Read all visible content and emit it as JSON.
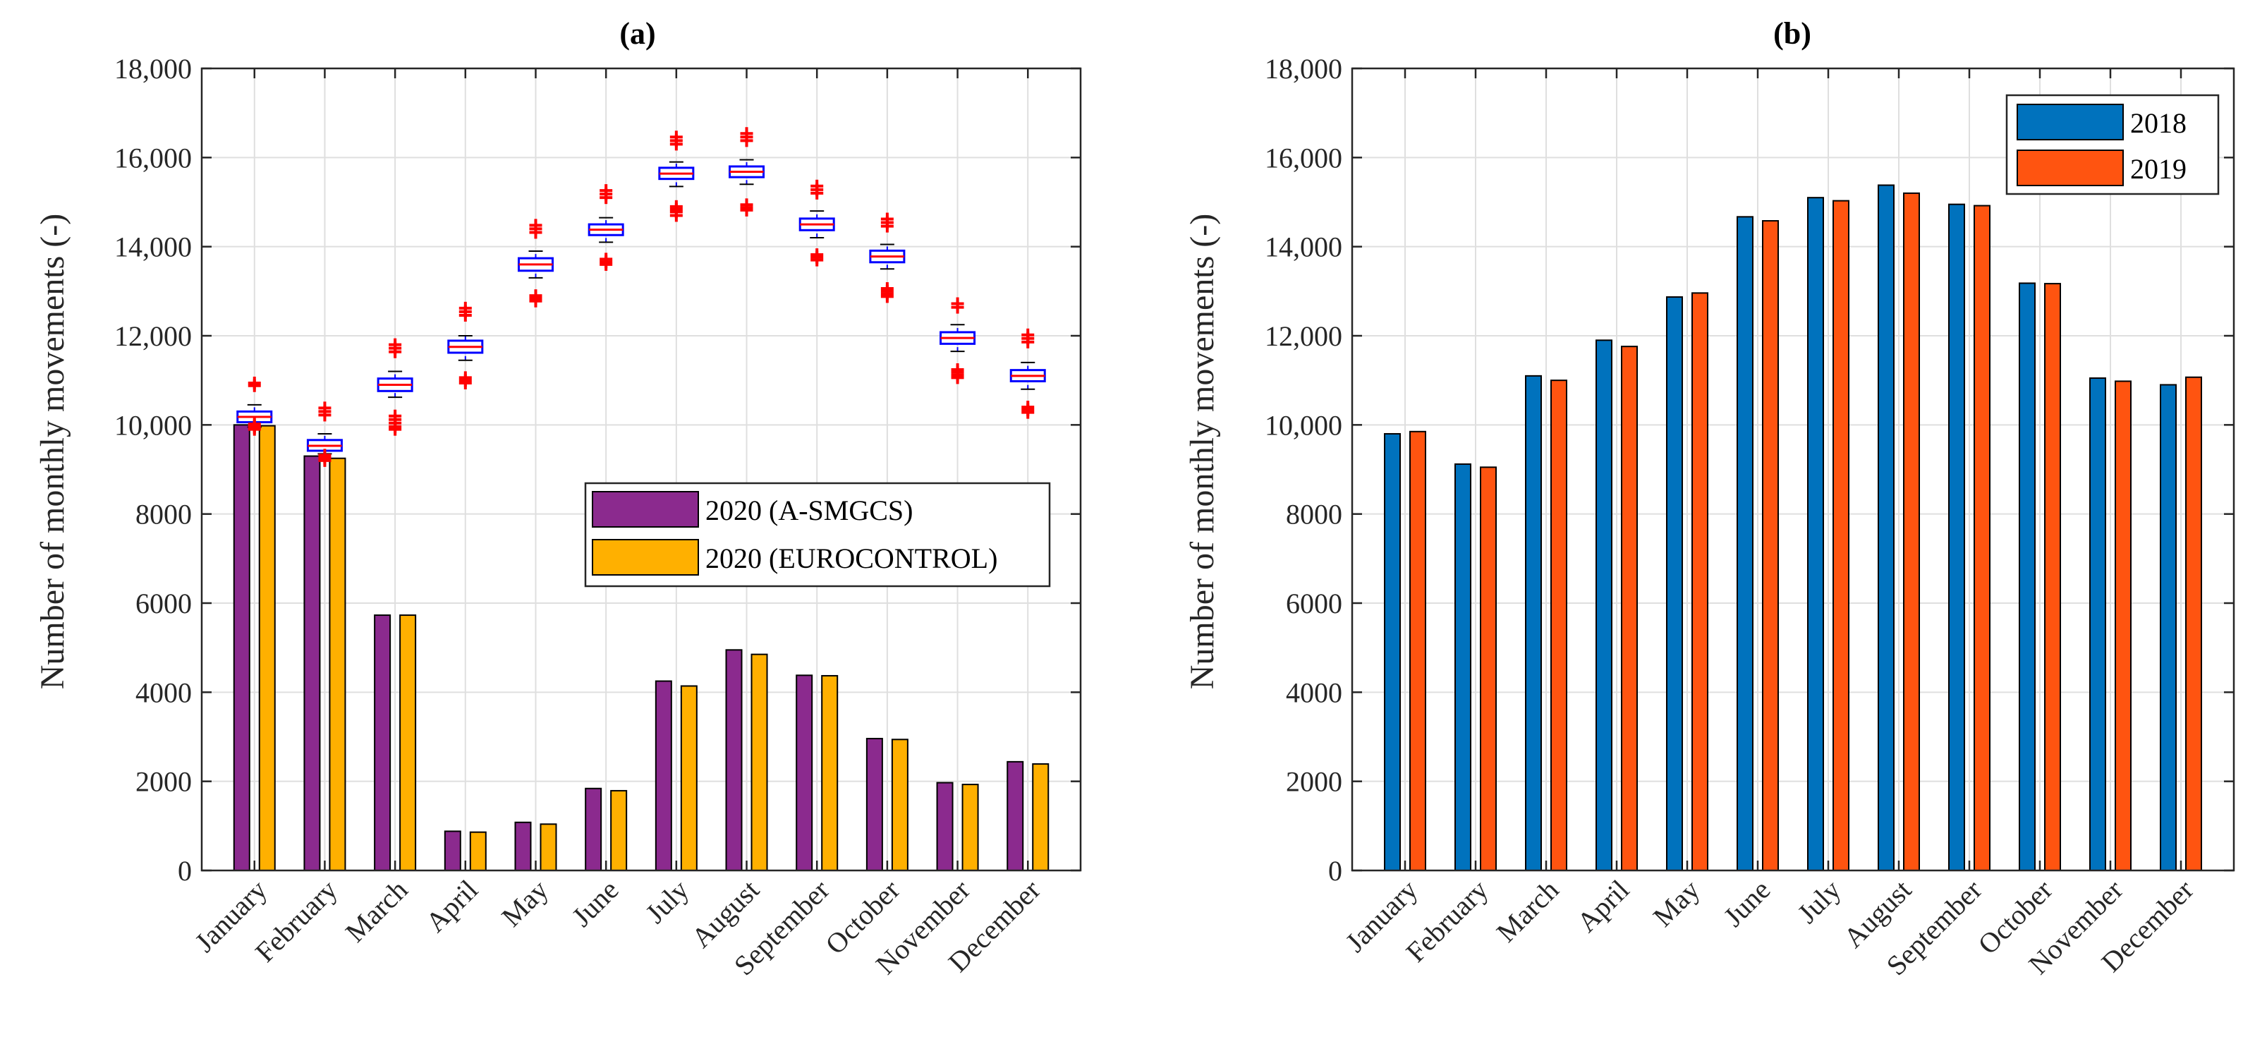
{
  "chart_data": [
    {
      "type": "bar",
      "title": "(a)",
      "ylabel": "Number of monthly movements (-)",
      "xlabel": "",
      "ylim": [
        0,
        18000
      ],
      "yticks": [
        0,
        2000,
        4000,
        6000,
        8000,
        10000,
        12000,
        14000,
        16000,
        18000
      ],
      "ytick_labels": [
        "0",
        "2000",
        "4000",
        "6000",
        "8000",
        "10,000",
        "12,000",
        "14,000",
        "16,000",
        "18,000"
      ],
      "categories": [
        "January",
        "February",
        "March",
        "April",
        "May",
        "June",
        "July",
        "August",
        "September",
        "October",
        "November",
        "December"
      ],
      "series": [
        {
          "name": "2020 (A-SMGCS)",
          "color": "#8b2a8e",
          "values": [
            10000,
            9300,
            5730,
            880,
            1080,
            1840,
            4250,
            4950,
            4380,
            2960,
            1970,
            2440
          ]
        },
        {
          "name": "2020 (EUROCONTROL)",
          "color": "#ffb000",
          "values": [
            9980,
            9250,
            5730,
            860,
            1040,
            1790,
            4140,
            4850,
            4370,
            2940,
            1930,
            2390
          ]
        }
      ],
      "boxplot": {
        "description_color_box": "#0000ff",
        "median_color": "#ff0000",
        "outlier_color": "#ff0000",
        "median": [
          10180,
          9530,
          10900,
          11750,
          13600,
          14380,
          15640,
          15680,
          14500,
          13780,
          11950,
          11100
        ],
        "q1": [
          10060,
          9420,
          10760,
          11620,
          13460,
          14260,
          15520,
          15560,
          14370,
          13650,
          11820,
          10980
        ],
        "q3": [
          10300,
          9660,
          11040,
          11890,
          13740,
          14500,
          15770,
          15800,
          14630,
          13910,
          12080,
          11230
        ],
        "whisker_low": [
          9950,
          9350,
          10620,
          11450,
          13300,
          14100,
          15350,
          15400,
          14200,
          13500,
          11650,
          10800
        ],
        "whisker_high": [
          10450,
          9800,
          11200,
          12000,
          13900,
          14650,
          15900,
          15950,
          14800,
          14050,
          12250,
          11400
        ],
        "outliers_low": [
          [
            10020,
            9980,
            9940,
            9900
          ],
          [
            9320,
            9280,
            9240,
            9200
          ],
          [
            10200,
            10120,
            10040,
            9960,
            9900
          ],
          [
            11060,
            11000,
            10940
          ],
          [
            12900,
            12840,
            12780
          ],
          [
            13720,
            13660,
            13600
          ],
          [
            14900,
            14840,
            14780,
            14700
          ],
          [
            14940,
            14880,
            14820
          ],
          [
            13820,
            13760,
            13700
          ],
          [
            13060,
            13000,
            12940,
            12880
          ],
          [
            11240,
            11180,
            11120,
            11060
          ],
          [
            10400,
            10340,
            10280
          ]
        ],
        "outliers_high": [
          [
            10880,
            10940
          ],
          [
            10220,
            10300,
            10380
          ],
          [
            11640,
            11720,
            11800
          ],
          [
            12460,
            12540,
            12620
          ],
          [
            14320,
            14400,
            14480
          ],
          [
            15100,
            15180,
            15260
          ],
          [
            16300,
            16380,
            16460
          ],
          [
            16380,
            16460,
            16540
          ],
          [
            15200,
            15280,
            15360
          ],
          [
            14460,
            14540,
            14620
          ],
          [
            12640,
            12720
          ],
          [
            11860,
            11940,
            12020
          ]
        ]
      },
      "legend_position": "center-right"
    },
    {
      "type": "bar",
      "title": "(b)",
      "ylabel": "Number of monthly movements (-)",
      "xlabel": "",
      "ylim": [
        0,
        18000
      ],
      "yticks": [
        0,
        2000,
        4000,
        6000,
        8000,
        10000,
        12000,
        14000,
        16000,
        18000
      ],
      "ytick_labels": [
        "0",
        "2000",
        "4000",
        "6000",
        "8000",
        "10,000",
        "12,000",
        "14,000",
        "16,000",
        "18,000"
      ],
      "categories": [
        "January",
        "February",
        "March",
        "April",
        "May",
        "June",
        "July",
        "August",
        "September",
        "October",
        "November",
        "December"
      ],
      "series": [
        {
          "name": "2018",
          "color": "#0072bd",
          "values": [
            9800,
            9120,
            11100,
            11900,
            12870,
            14670,
            15100,
            15380,
            14950,
            13180,
            11050,
            10900
          ]
        },
        {
          "name": "2019",
          "color": "#ff5410",
          "values": [
            9850,
            9050,
            11000,
            11760,
            12960,
            14580,
            15030,
            15200,
            14920,
            13170,
            10980,
            11070
          ]
        }
      ],
      "legend_position": "top-right"
    }
  ]
}
